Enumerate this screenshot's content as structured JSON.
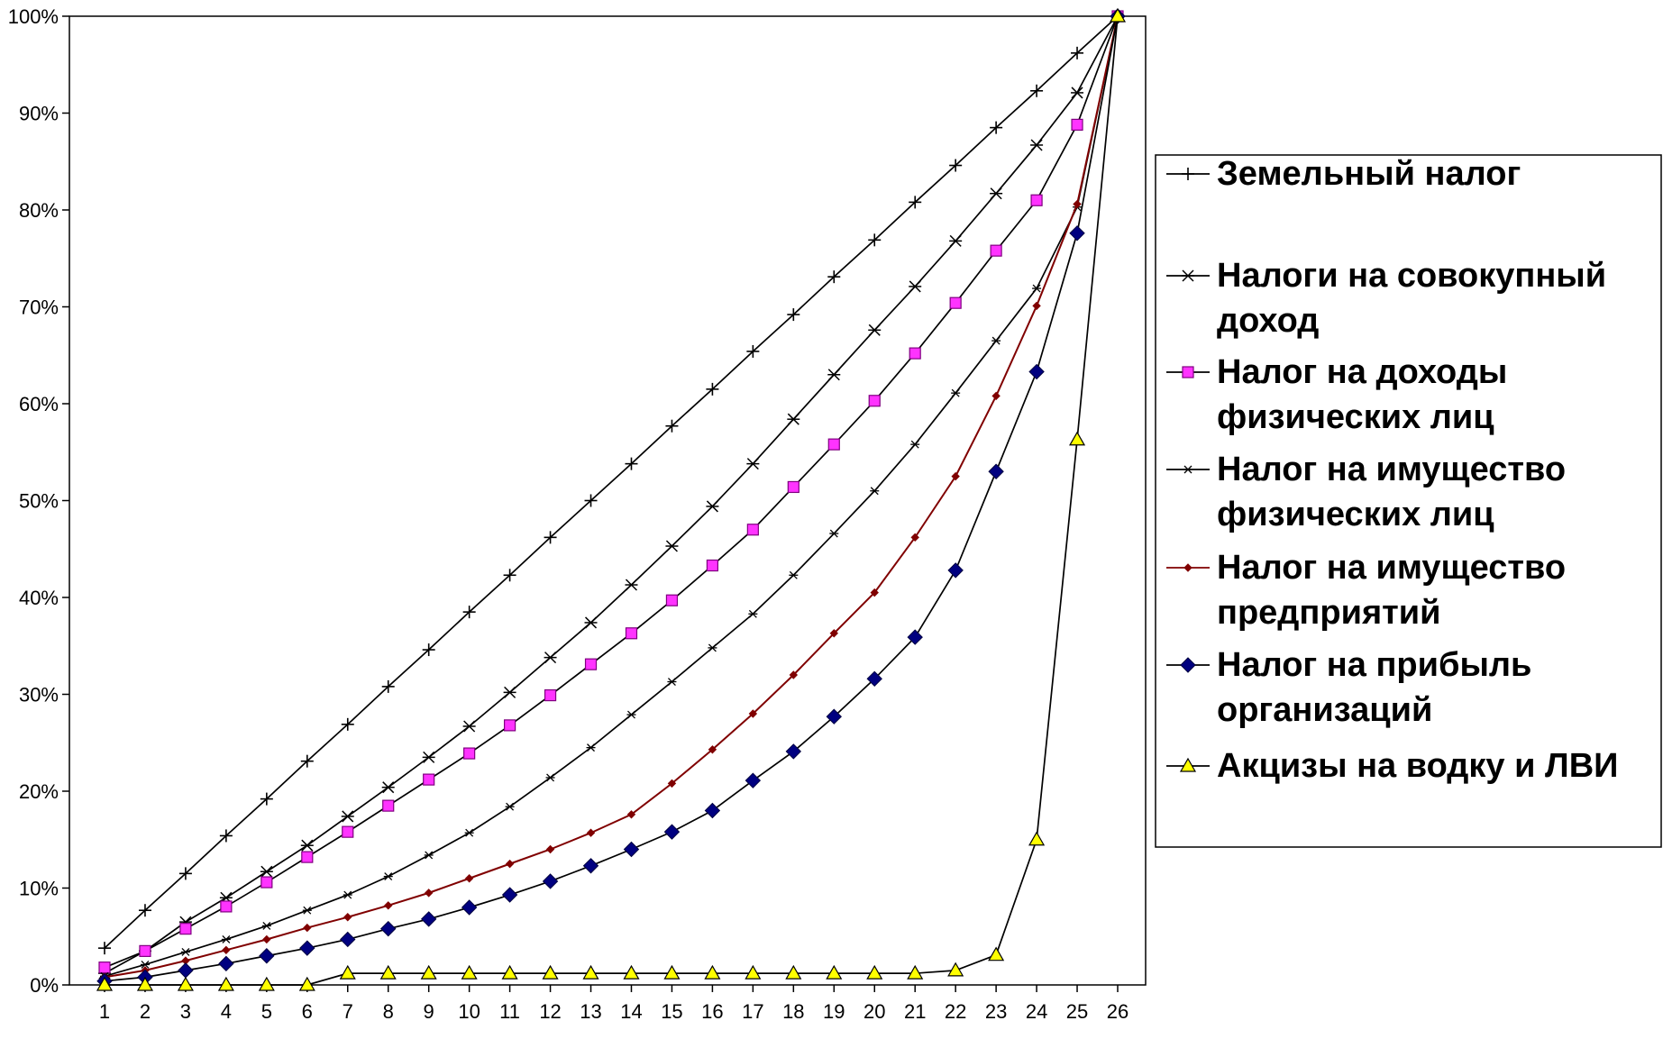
{
  "chart_data": {
    "type": "line",
    "title": "",
    "xlabel": "",
    "ylabel": "",
    "categories": [
      "1",
      "2",
      "3",
      "4",
      "5",
      "6",
      "7",
      "8",
      "9",
      "10",
      "11",
      "12",
      "13",
      "14",
      "15",
      "16",
      "17",
      "18",
      "19",
      "20",
      "21",
      "22",
      "23",
      "24",
      "25",
      "26"
    ],
    "ylim": [
      0,
      100
    ],
    "yticks": [
      "0%",
      "10%",
      "20%",
      "30%",
      "40%",
      "50%",
      "60%",
      "70%",
      "80%",
      "90%",
      "100%"
    ],
    "grid": false,
    "legend_position": "right",
    "series": [
      {
        "name": "Земельный налог",
        "marker": "plus",
        "color": "#000000",
        "values": [
          3.8,
          7.7,
          11.5,
          15.4,
          19.2,
          23.1,
          26.9,
          30.8,
          34.6,
          38.5,
          42.3,
          46.2,
          50.0,
          53.8,
          57.7,
          61.5,
          65.4,
          69.2,
          73.1,
          76.9,
          80.8,
          84.6,
          88.5,
          92.3,
          96.2,
          100
        ]
      },
      {
        "name": "Налоги на совокупный доход",
        "marker": "star",
        "color": "#000000",
        "values": [
          1.2,
          3.5,
          6.5,
          9.0,
          11.7,
          14.4,
          17.4,
          20.4,
          23.5,
          26.7,
          30.2,
          33.8,
          37.4,
          41.3,
          45.3,
          49.4,
          53.8,
          58.4,
          63.0,
          67.6,
          72.1,
          76.8,
          81.7,
          86.7,
          92.1,
          100
        ]
      },
      {
        "name": "Налог на доходы физических лиц",
        "marker": "square",
        "color": "#000000",
        "markerFill": "#ff33ff",
        "values": [
          1.8,
          3.5,
          5.8,
          8.1,
          10.6,
          13.2,
          15.8,
          18.5,
          21.2,
          23.9,
          26.8,
          29.9,
          33.1,
          36.3,
          39.7,
          43.3,
          47.0,
          51.4,
          55.8,
          60.3,
          65.2,
          70.4,
          75.8,
          81.0,
          88.8,
          100
        ]
      },
      {
        "name": "Налог на имущество физических лиц",
        "marker": "smallstar",
        "color": "#000000",
        "values": [
          0.9,
          2.1,
          3.4,
          4.7,
          6.1,
          7.7,
          9.3,
          11.2,
          13.4,
          15.7,
          18.4,
          21.4,
          24.5,
          27.9,
          31.3,
          34.8,
          38.3,
          42.3,
          46.6,
          51.0,
          55.8,
          61.1,
          66.5,
          71.9,
          80.3,
          100
        ]
      },
      {
        "name": "Налог на имущество предприятий",
        "marker": "smalldiamond",
        "color": "#800000",
        "markerFill": "#800000",
        "values": [
          0.8,
          1.5,
          2.5,
          3.6,
          4.7,
          5.9,
          7.0,
          8.2,
          9.5,
          11.0,
          12.5,
          14.0,
          15.7,
          17.6,
          20.8,
          24.3,
          28.0,
          32.0,
          36.3,
          40.5,
          46.2,
          52.5,
          60.8,
          70.1,
          80.6,
          100
        ]
      },
      {
        "name": "Налог на прибыль организаций",
        "marker": "diamond",
        "color": "#000000",
        "markerFill": "#000080",
        "values": [
          0.4,
          0.8,
          1.5,
          2.2,
          3.0,
          3.8,
          4.7,
          5.8,
          6.8,
          8.0,
          9.3,
          10.7,
          12.3,
          14.0,
          15.8,
          18.0,
          21.1,
          24.1,
          27.7,
          31.6,
          35.9,
          42.8,
          53.0,
          63.3,
          77.6,
          100
        ]
      },
      {
        "name": "Акцизы на водку и ЛВИ",
        "marker": "triangle",
        "color": "#000000",
        "markerFill": "#ffff00",
        "values": [
          0.0,
          0.0,
          0.0,
          0.0,
          0.0,
          0.0,
          1.2,
          1.2,
          1.2,
          1.2,
          1.2,
          1.2,
          1.2,
          1.2,
          1.2,
          1.2,
          1.2,
          1.2,
          1.2,
          1.2,
          1.2,
          1.5,
          3.1,
          15.0,
          56.3,
          100
        ]
      }
    ]
  },
  "legend": {
    "lines": [
      [
        "Земельный налог"
      ],
      [
        "Налоги на совокупный",
        "доход"
      ],
      [
        "Налог на доходы",
        "физических лиц"
      ],
      [
        "Налог на имущество",
        "физических лиц"
      ],
      [
        "Налог на имущество",
        "предприятий"
      ],
      [
        "Налог на прибыль",
        "организаций"
      ],
      [
        "Акцизы на водку и ЛВИ"
      ]
    ]
  }
}
